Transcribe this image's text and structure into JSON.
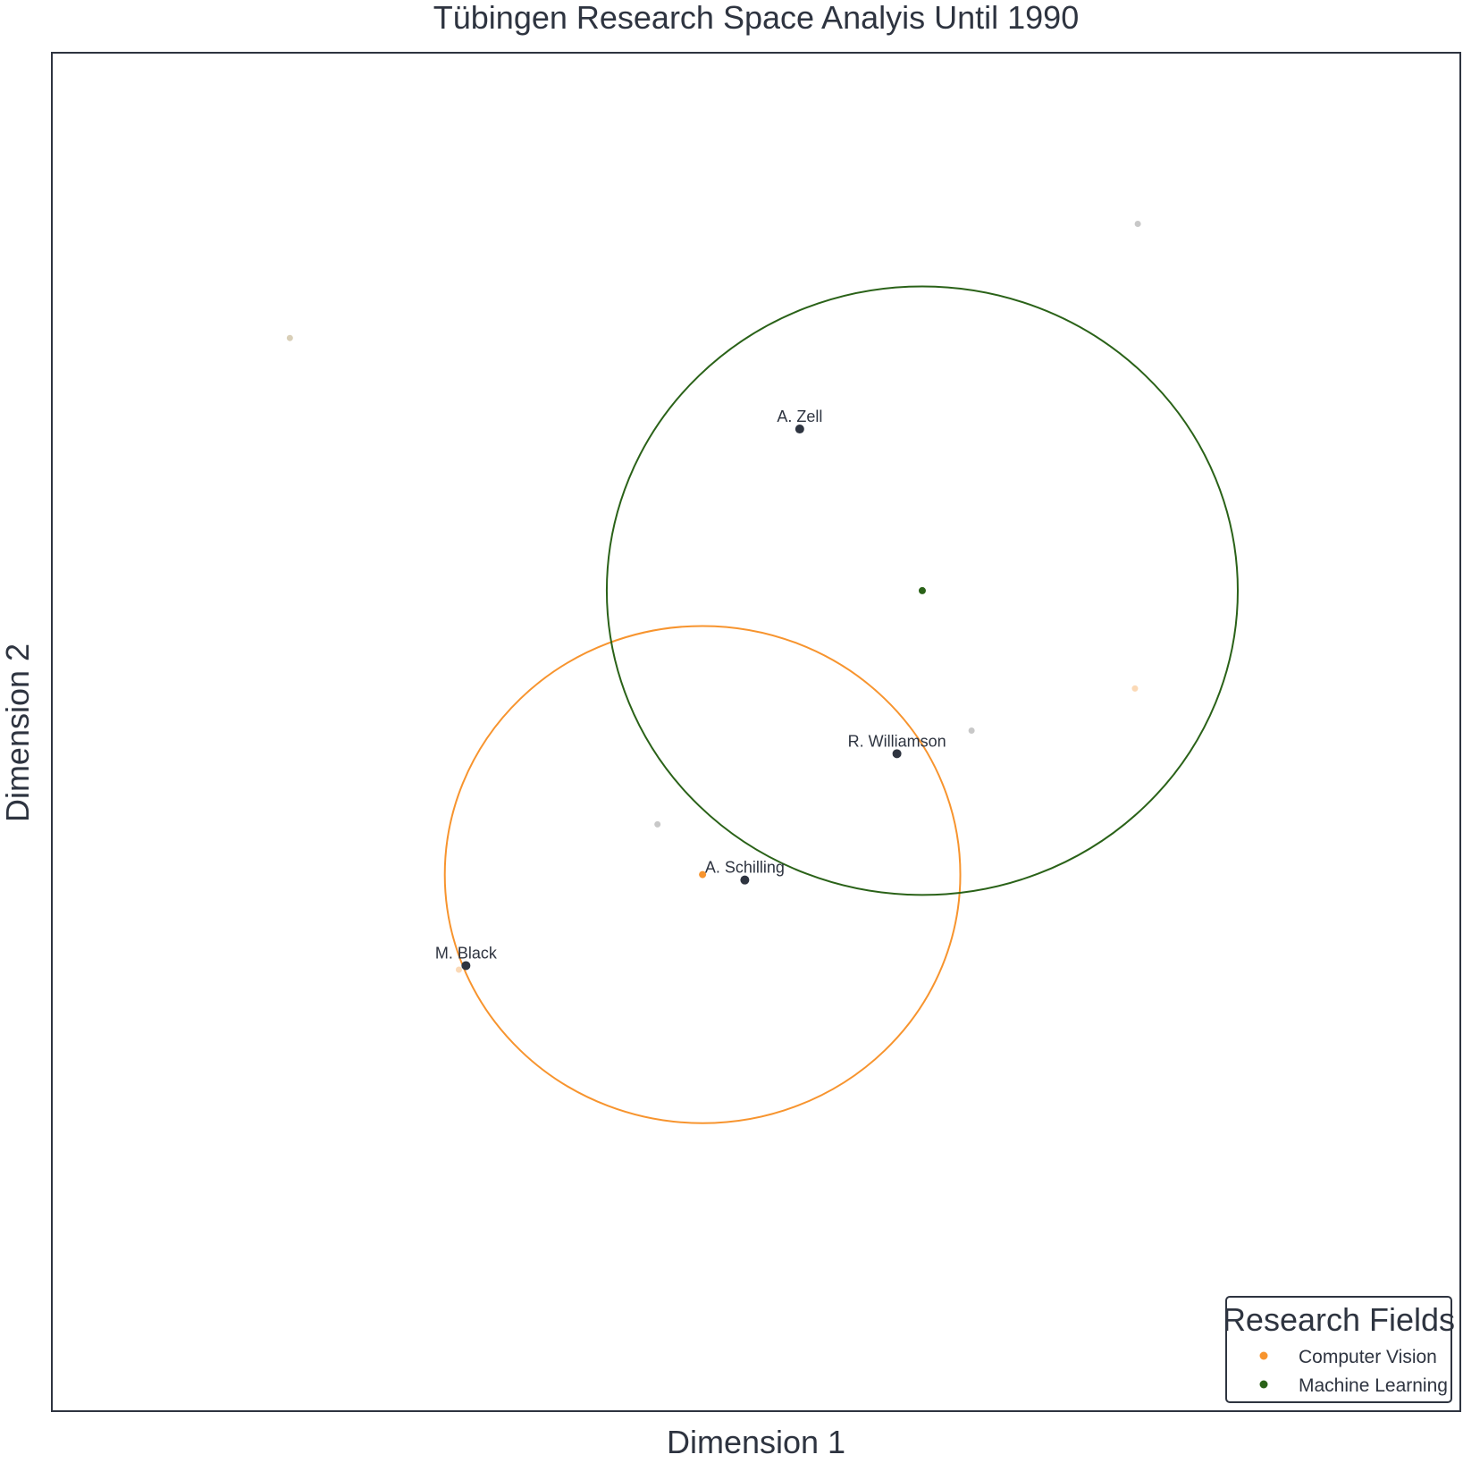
{
  "chart_data": {
    "type": "scatter",
    "title": "Tübingen Research Space Analyis Until 1990",
    "xlabel": "Dimension 1",
    "ylabel": "Dimension 2",
    "xlim": [
      0,
      100
    ],
    "ylim": [
      0,
      100
    ],
    "grid": false,
    "legend": {
      "title": "Research Fields",
      "placement": "bottom-right",
      "entries": [
        {
          "label": "Computer Vision",
          "color": "#f7942e"
        },
        {
          "label": "Machine Learning",
          "color": "#2a6218"
        }
      ]
    },
    "clusters": [
      {
        "name": "Computer Vision",
        "color": "#f7942e",
        "center": [
          46.2,
          39.5
        ],
        "radius": [
          18.3,
          18.3
        ]
      },
      {
        "name": "Machine Learning",
        "color": "#2a6218",
        "center": [
          61.8,
          60.4
        ],
        "radius": [
          22.4,
          22.4
        ]
      }
    ],
    "background_points": [
      {
        "x": 16.9,
        "y": 79.0,
        "color": "#d9cfb8"
      },
      {
        "x": 77.1,
        "y": 87.4,
        "color": "#c8c8c8"
      },
      {
        "x": 76.9,
        "y": 53.2,
        "color": "#fbd9b6"
      },
      {
        "x": 65.3,
        "y": 50.1,
        "color": "#c8c8c8"
      },
      {
        "x": 43.0,
        "y": 43.2,
        "color": "#c8c8c8"
      },
      {
        "x": 28.9,
        "y": 32.5,
        "color": "#fbd9b6"
      }
    ],
    "researchers": [
      {
        "name": "A. Zell",
        "x": 53.1,
        "y": 72.3
      },
      {
        "name": "R. Williamson",
        "x": 60.0,
        "y": 48.4
      },
      {
        "name": "A. Schilling",
        "x": 49.2,
        "y": 39.1
      },
      {
        "name": "M. Black",
        "x": 29.4,
        "y": 32.8
      }
    ]
  },
  "colors": {
    "axis": "#2e3440",
    "researcher_point": "#2e3440"
  }
}
